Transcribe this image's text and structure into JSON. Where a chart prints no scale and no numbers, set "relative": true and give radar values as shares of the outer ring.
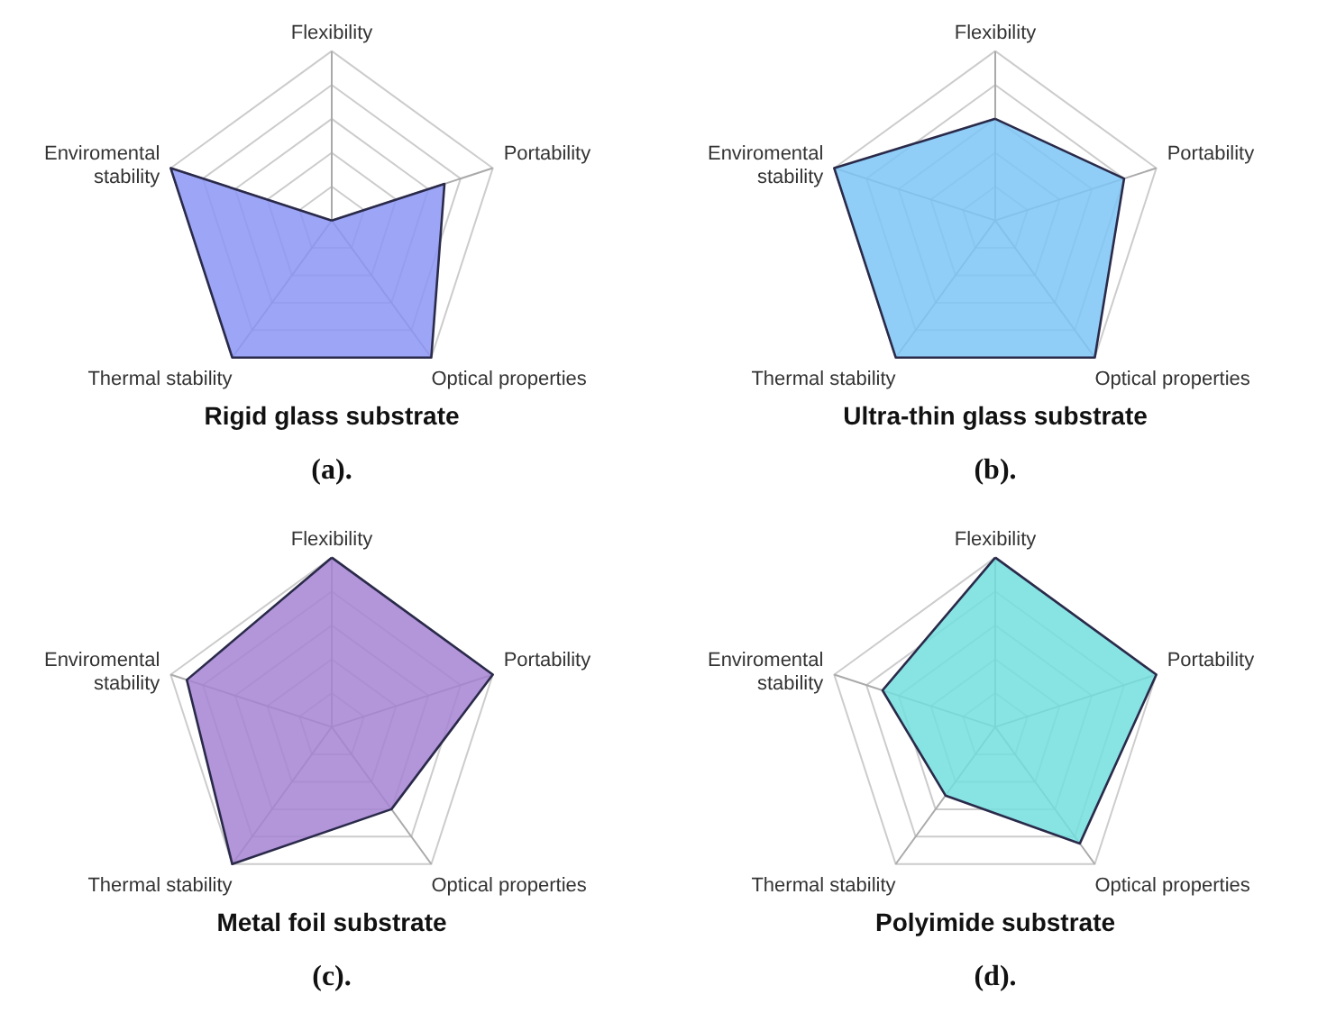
{
  "chart_data": [
    {
      "type": "radar",
      "title": "Rigid glass substrate",
      "relative": true,
      "categories": [
        "Flexibility",
        "Portability",
        "Optical properties",
        "Thermal stability",
        "Enviromental stability"
      ],
      "series": [
        {
          "color": "#8c95f5",
          "values": [
            0,
            0.7,
            1,
            1,
            1
          ]
        }
      ],
      "annotations": [
        "(a)."
      ]
    },
    {
      "type": "radar",
      "title": "Ultra-thin glass substrate",
      "relative": true,
      "categories": [
        "Flexibility",
        "Portability",
        "Optical properties",
        "Thermal stability",
        "Enviromental stability"
      ],
      "series": [
        {
          "color": "#7cc6f6",
          "values": [
            0.6,
            0.8,
            1,
            1,
            1
          ]
        }
      ],
      "annotations": [
        "(b)."
      ]
    },
    {
      "type": "radar",
      "title": "Metal foil substrate",
      "relative": true,
      "categories": [
        "Flexibility",
        "Portability",
        "Optical properties",
        "Thermal stability",
        "Enviromental stability"
      ],
      "series": [
        {
          "color": "#a683d4",
          "values": [
            1,
            1,
            0.6,
            1,
            0.9
          ]
        }
      ],
      "annotations": [
        "(c)."
      ]
    },
    {
      "type": "radar",
      "title": "Polyimide substrate",
      "relative": true,
      "categories": [
        "Flexibility",
        "Portability",
        "Optical properties",
        "Thermal stability",
        "Enviromental stability"
      ],
      "series": [
        {
          "color": "#73dede",
          "values": [
            1,
            1,
            0.85,
            0.5,
            0.7
          ]
        }
      ],
      "annotations": [
        "(d)."
      ]
    }
  ]
}
